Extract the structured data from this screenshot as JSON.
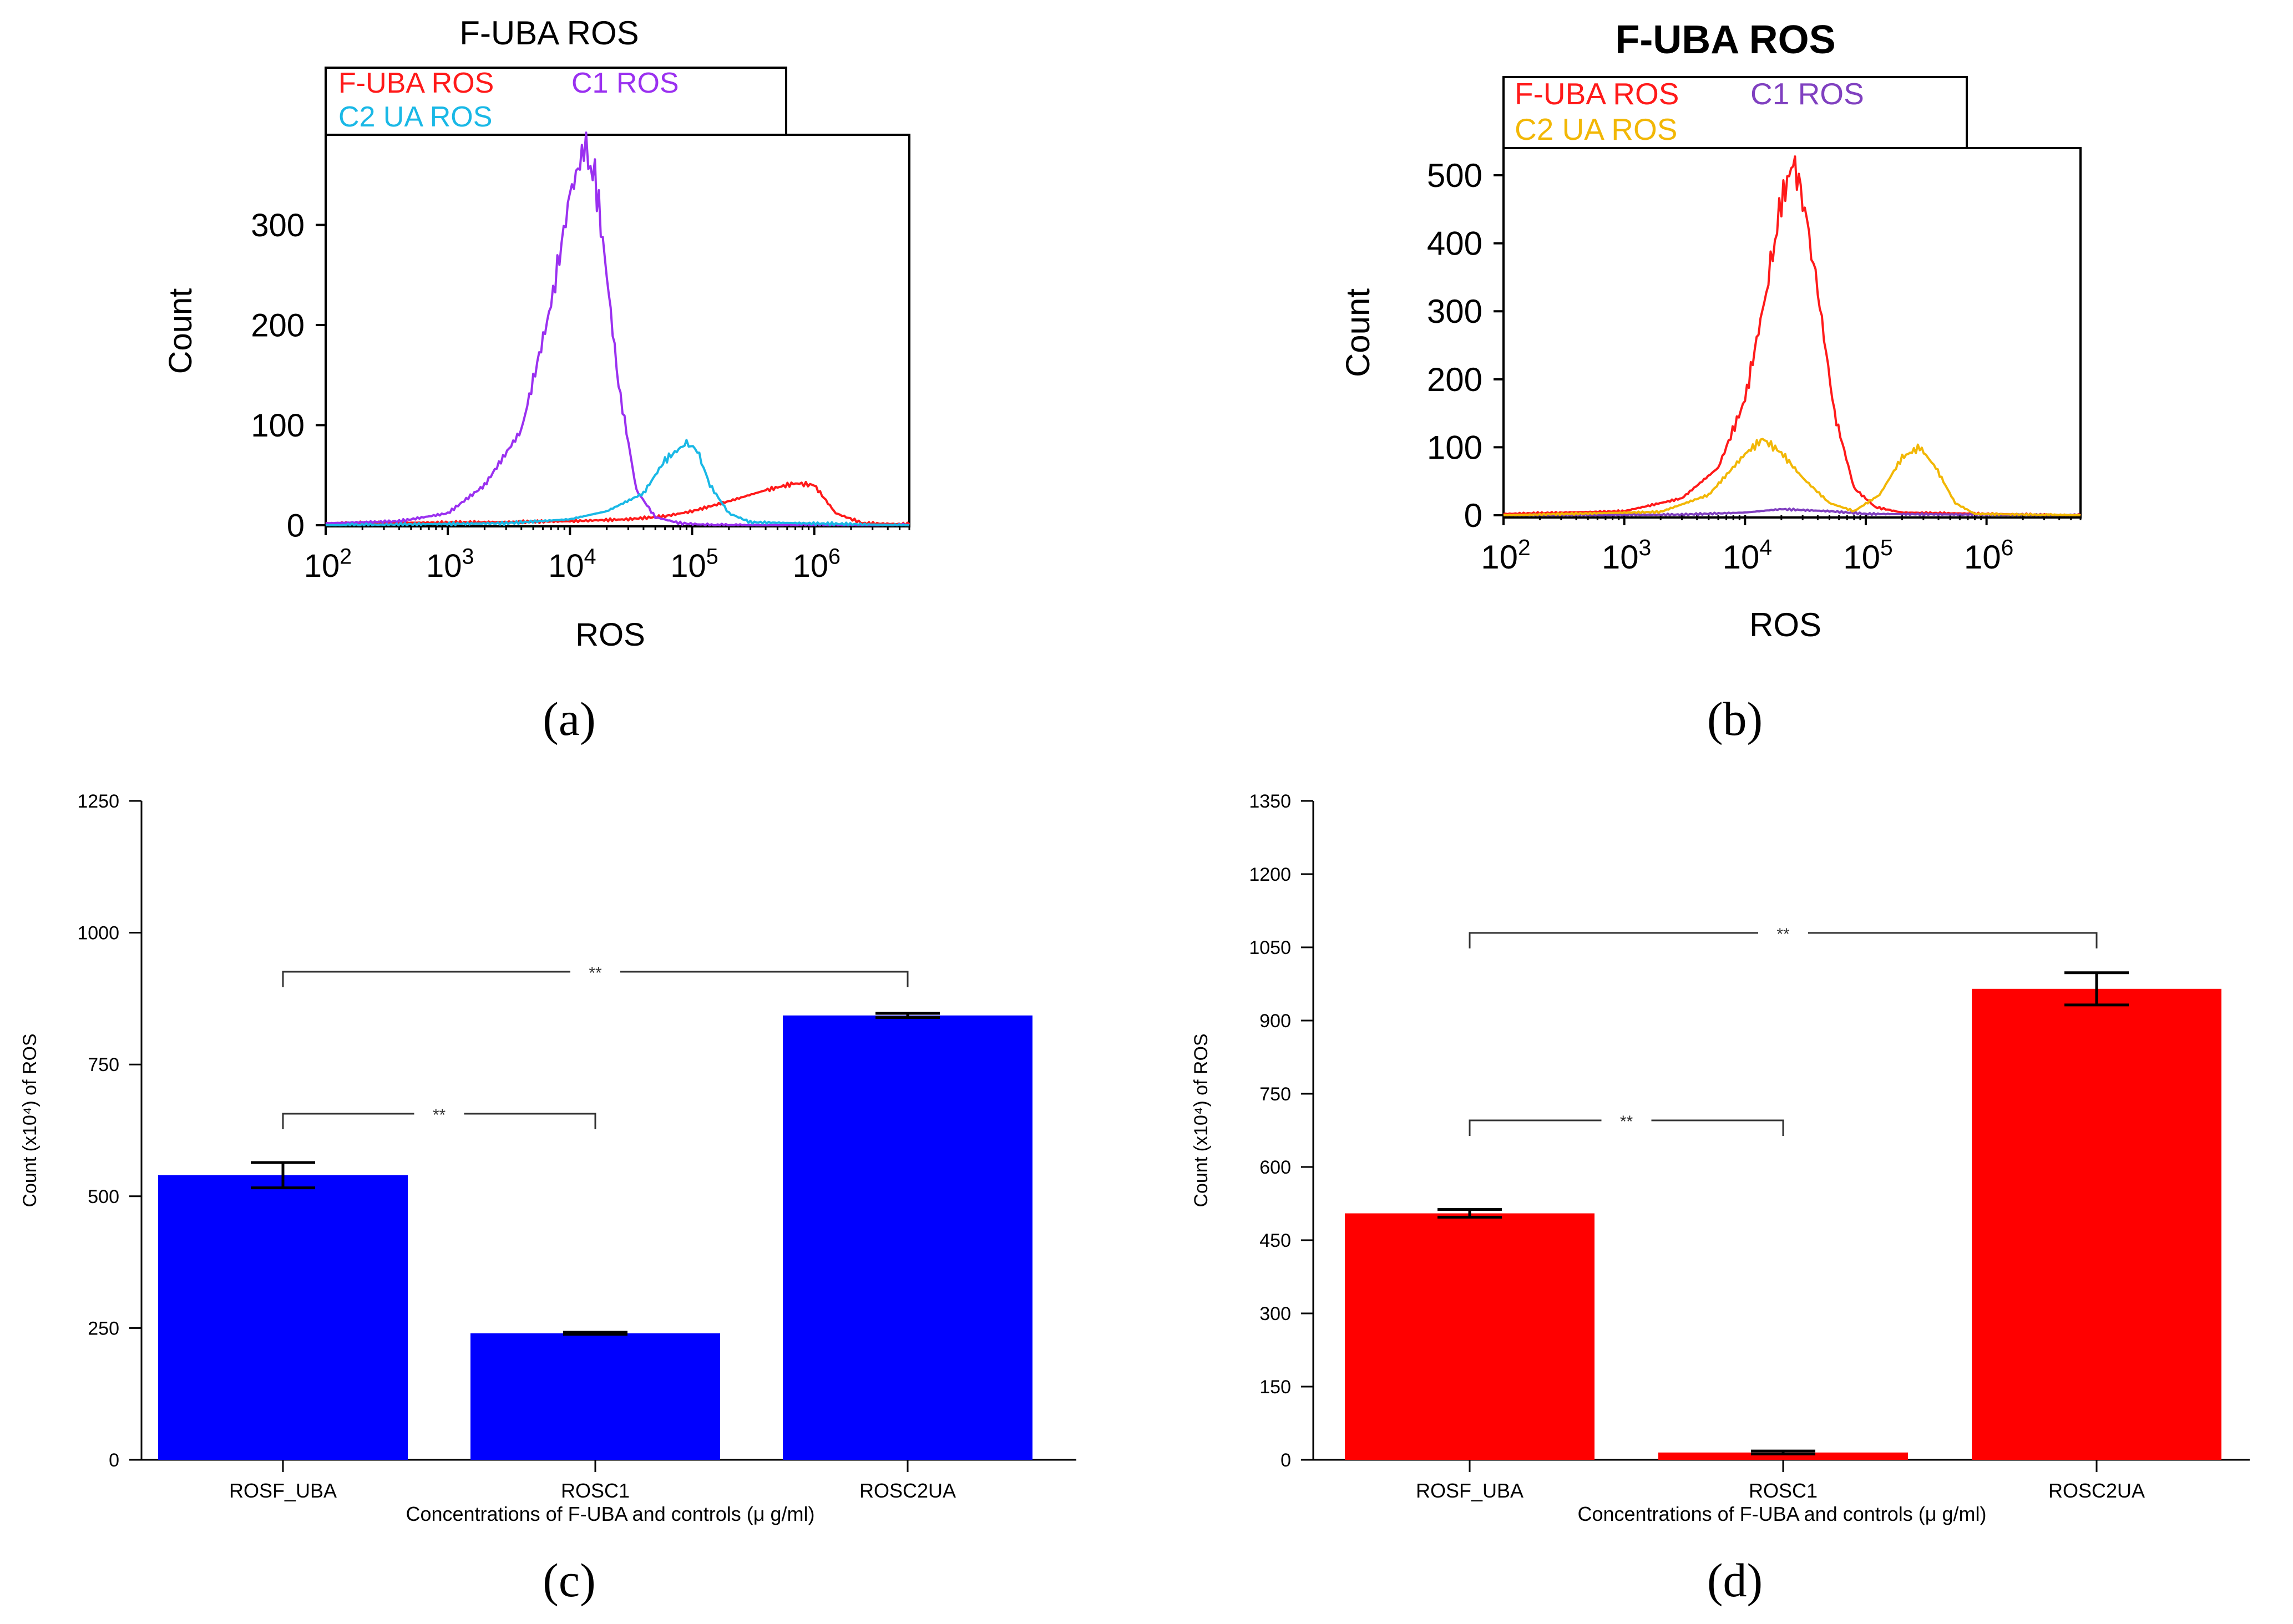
{
  "figure": {
    "labels": {
      "a": "(a)",
      "b": "(b)",
      "c": "(c)",
      "d": "(d)"
    }
  },
  "colors": {
    "red": "#ff1a1a",
    "purple": "#9a30f0",
    "cyan": "#19b8e6",
    "dark_purple": "#8040c0",
    "gold": "#f2b705",
    "blue_bar": "#0000ff",
    "red_bar": "#ff0000"
  },
  "chart_data": [
    {
      "id": "a",
      "type": "line",
      "title": "F-UBA ROS",
      "xlabel": "ROS",
      "ylabel": "Count",
      "xscale": "log",
      "xlim": [
        100,
        6000000
      ],
      "ylim": [
        0,
        390
      ],
      "yticks": [
        0,
        100,
        200,
        300
      ],
      "xticks": [
        {
          "value": 100,
          "base": "10",
          "exp": "2"
        },
        {
          "value": 1000,
          "base": "10",
          "exp": "3"
        },
        {
          "value": 10000,
          "base": "10",
          "exp": "4"
        },
        {
          "value": 100000,
          "base": "10",
          "exp": "5"
        },
        {
          "value": 1000000,
          "base": "10",
          "exp": "6"
        }
      ],
      "legend": {
        "position": "top-left",
        "rows": [
          [
            "F-UBA ROS",
            "C1 ROS"
          ],
          [
            "C2 UA ROS"
          ]
        ]
      },
      "series": [
        {
          "name": "F-UBA ROS",
          "color": "#ff1a1a",
          "x": [
            100,
            2000,
            10000,
            30000,
            60000,
            100000,
            200000,
            400000,
            700000,
            1000000,
            1500000,
            2500000,
            6000000
          ],
          "y": [
            2,
            3,
            4,
            6,
            9,
            14,
            24,
            35,
            42,
            40,
            12,
            2,
            1
          ]
        },
        {
          "name": "C1 ROS",
          "color": "#9a30f0",
          "x": [
            100,
            400,
            1000,
            2000,
            4000,
            7000,
            10000,
            13000,
            16000,
            20000,
            25000,
            35000,
            50000,
            80000,
            150000,
            6000000
          ],
          "y": [
            2,
            4,
            12,
            40,
            95,
            220,
            330,
            375,
            350,
            250,
            140,
            35,
            8,
            2,
            0,
            0
          ]
        },
        {
          "name": "C2 UA ROS",
          "color": "#19b8e6",
          "x": [
            100,
            3000,
            10000,
            20000,
            40000,
            60000,
            90000,
            110000,
            140000,
            200000,
            300000,
            6000000
          ],
          "y": [
            0,
            2,
            6,
            14,
            32,
            65,
            82,
            75,
            40,
            12,
            3,
            0
          ]
        }
      ]
    },
    {
      "id": "b",
      "type": "line",
      "title": "F-UBA ROS",
      "xlabel": "ROS",
      "ylabel": "Count",
      "xscale": "log",
      "xlim": [
        100,
        6000000
      ],
      "ylim": [
        0,
        540
      ],
      "yticks": [
        0,
        100,
        200,
        300,
        400,
        500
      ],
      "xticks": [
        {
          "value": 100,
          "base": "10",
          "exp": "2"
        },
        {
          "value": 1000,
          "base": "10",
          "exp": "3"
        },
        {
          "value": 10000,
          "base": "10",
          "exp": "4"
        },
        {
          "value": 100000,
          "base": "10",
          "exp": "5"
        },
        {
          "value": 1000000,
          "base": "10",
          "exp": "6"
        }
      ],
      "legend": {
        "position": "top-left",
        "rows": [
          [
            "F-UBA ROS",
            "C1 ROS"
          ],
          [
            "C2 UA ROS"
          ]
        ]
      },
      "series": [
        {
          "name": "F-UBA ROS",
          "color": "#ff1a1a",
          "x": [
            100,
            1000,
            3000,
            6000,
            10000,
            15000,
            20000,
            25000,
            30000,
            40000,
            55000,
            80000,
            120000,
            200000,
            6000000
          ],
          "y": [
            2,
            6,
            25,
            70,
            170,
            330,
            460,
            520,
            470,
            330,
            150,
            40,
            12,
            4,
            0
          ]
        },
        {
          "name": "C1 ROS",
          "color": "#8040c0",
          "x": [
            100,
            3000,
            10000,
            20000,
            50000,
            100000,
            6000000
          ],
          "y": [
            0,
            1,
            4,
            9,
            6,
            2,
            0
          ]
        },
        {
          "name": "C2 UA ROS",
          "color": "#f2b705",
          "x": [
            100,
            2000,
            5000,
            10000,
            14000,
            20000,
            30000,
            50000,
            80000,
            130000,
            200000,
            280000,
            380000,
            550000,
            800000,
            6000000
          ],
          "y": [
            0,
            5,
            30,
            90,
            112,
            92,
            55,
            18,
            6,
            30,
            85,
            100,
            70,
            18,
            2,
            0
          ]
        }
      ]
    },
    {
      "id": "c",
      "type": "bar",
      "categories": [
        "ROSF_UBA",
        "ROSC1",
        "ROSC2UA"
      ],
      "values": [
        540,
        240,
        843
      ],
      "errors": [
        24,
        2,
        4
      ],
      "bar_color": "#0000ff",
      "ylabel": "Count (x10⁴) of ROS",
      "xlabel": "Concentrations of F-UBA and controls (μ g/ml)",
      "ylim": [
        0,
        1250
      ],
      "yticks": [
        0,
        250,
        500,
        750,
        1000,
        1250
      ],
      "significance": [
        {
          "from": 0,
          "to": 2,
          "label": "**"
        },
        {
          "from": 0,
          "to": 1,
          "label": "**"
        }
      ]
    },
    {
      "id": "d",
      "type": "bar",
      "categories": [
        "ROSF_UBA",
        "ROSC1",
        "ROSC2UA"
      ],
      "values": [
        505,
        15,
        965
      ],
      "errors": [
        8,
        3,
        33
      ],
      "bar_color": "#ff0000",
      "ylabel": "Count (x10⁴) of ROS",
      "xlabel": "Concentrations of F-UBA and controls (μ g/ml)",
      "ylim": [
        0,
        1350
      ],
      "yticks": [
        0,
        150,
        300,
        450,
        600,
        750,
        900,
        1050,
        1200,
        1350
      ],
      "significance": [
        {
          "from": 0,
          "to": 2,
          "label": "**"
        },
        {
          "from": 0,
          "to": 1,
          "label": "**"
        }
      ]
    }
  ]
}
